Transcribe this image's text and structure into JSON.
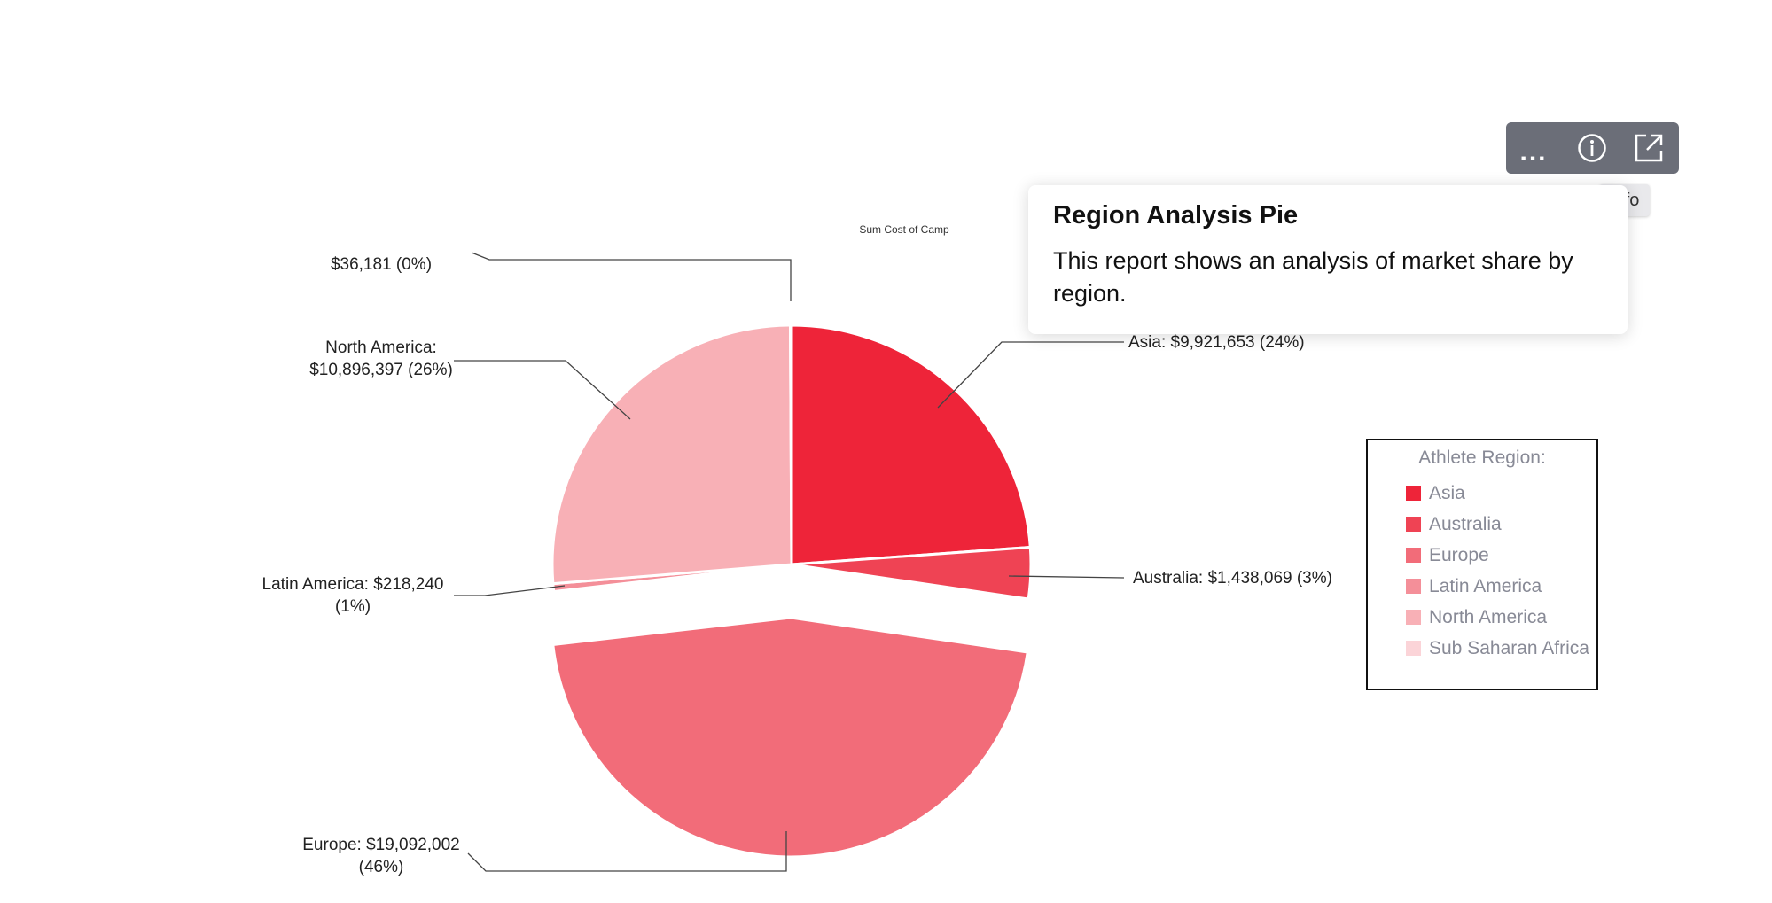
{
  "toolbar": {
    "more_glyph": "...",
    "info_tooltip": "Info"
  },
  "info_popover": {
    "title": "Region Analysis Pie",
    "body": "This report shows an analysis of market share by region."
  },
  "chart_data": {
    "type": "pie",
    "title": "Sum Cost of Camp",
    "exploded_slice": "Europe",
    "slices": [
      {
        "name": "Asia",
        "value": 9921653,
        "percent": 24,
        "color": "#ee2439",
        "label_lines": [
          "Asia: $9,921,653 (24%)"
        ]
      },
      {
        "name": "Australia",
        "value": 1438069,
        "percent": 3,
        "color": "#ef4354",
        "label_lines": [
          "Australia: $1,438,069 (3%)"
        ]
      },
      {
        "name": "Europe",
        "value": 19092002,
        "percent": 46,
        "color": "#f26c79",
        "label_lines": [
          "Europe: $19,092,002",
          "(46%)"
        ]
      },
      {
        "name": "Latin America",
        "value": 218240,
        "percent": 1,
        "color": "#f48f99",
        "label_lines": [
          "Latin America: $218,240",
          "(1%)"
        ]
      },
      {
        "name": "North America",
        "value": 10896397,
        "percent": 26,
        "color": "#f8b0b6",
        "label_lines": [
          "North America:",
          "$10,896,397 (26%)"
        ]
      },
      {
        "name": "Sub Saharan Africa",
        "value": 36181,
        "percent": 0,
        "color": "#fbd4d8",
        "label_lines": [
          "$36,181 (0%)"
        ]
      }
    ],
    "legend": {
      "title": "Athlete Region:",
      "position": "right",
      "items": [
        "Asia",
        "Australia",
        "Europe",
        "Latin America",
        "North America",
        "Sub Saharan Africa"
      ]
    }
  }
}
